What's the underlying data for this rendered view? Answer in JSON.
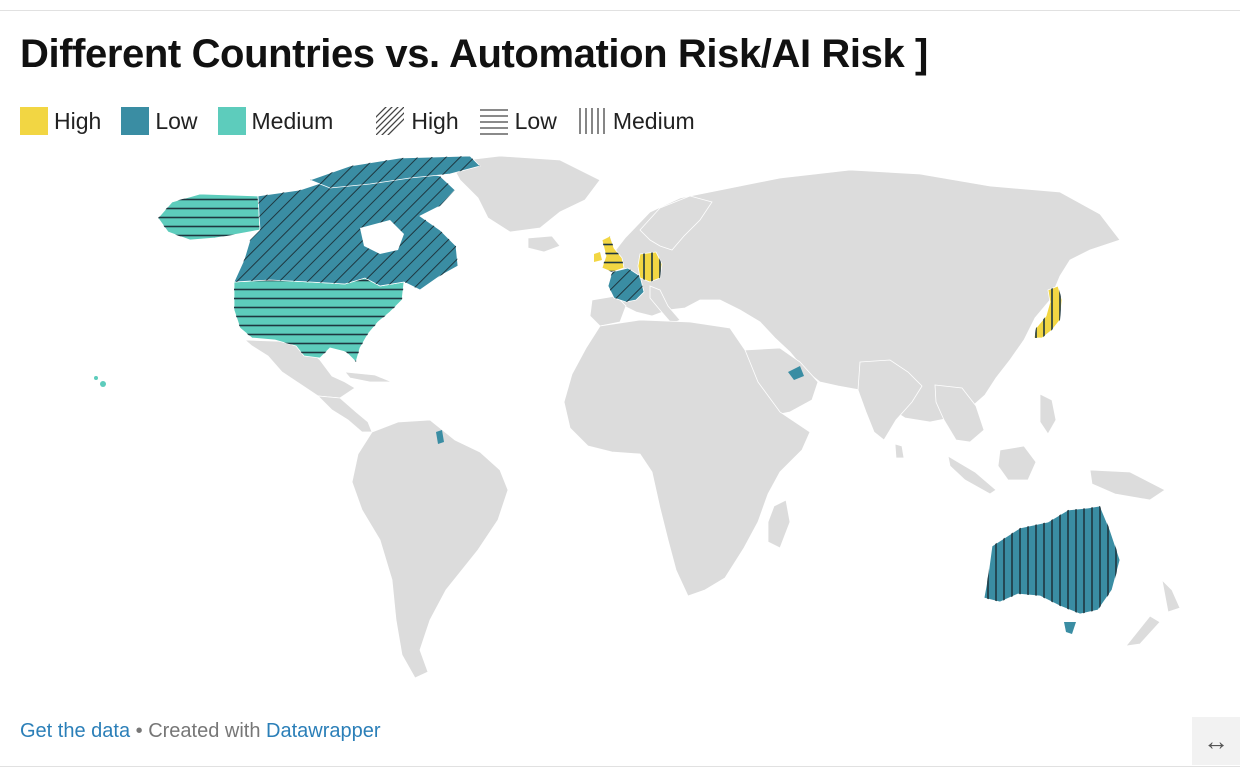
{
  "title": "Different Countries vs. Automation Risk/AI Risk ]",
  "colors": {
    "high": "#f2d643",
    "low": "#3a8da3",
    "medium": "#5dccbc",
    "land": "#dcdcdc",
    "border": "#ffffff",
    "hatch": "#1e3740",
    "link": "#2b7fb8"
  },
  "legend": {
    "color_keys": [
      {
        "label": "High",
        "color": "#f2d643"
      },
      {
        "label": "Low",
        "color": "#3a8da3"
      },
      {
        "label": "Medium",
        "color": "#5dccbc"
      }
    ],
    "pattern_keys": [
      {
        "label": "High",
        "pattern": "diagonal-hatch"
      },
      {
        "label": "Low",
        "pattern": "horizontal-lines"
      },
      {
        "label": "Medium",
        "pattern": "vertical-lines"
      }
    ]
  },
  "map_data": {
    "projection": "world",
    "fill_variable_legend": "High / Low / Medium",
    "pattern_variable_legend": "High / Low / Medium",
    "countries": [
      {
        "country": "United States",
        "fill": "Medium",
        "pattern": "Low"
      },
      {
        "country": "Canada",
        "fill": "Low",
        "pattern": "High"
      },
      {
        "country": "Greenland",
        "fill": "none",
        "pattern": "none"
      },
      {
        "country": "United Kingdom",
        "fill": "High",
        "pattern": "Low"
      },
      {
        "country": "France",
        "fill": "Low",
        "pattern": "High"
      },
      {
        "country": "Germany",
        "fill": "High",
        "pattern": "Medium"
      },
      {
        "country": "United Arab Emirates",
        "fill": "Low",
        "pattern": "none"
      },
      {
        "country": "Japan",
        "fill": "High",
        "pattern": "Medium"
      },
      {
        "country": "Australia",
        "fill": "Low",
        "pattern": "Medium"
      }
    ]
  },
  "footer": {
    "get_data": "Get the data",
    "separator": " • Created with ",
    "tool": "Datawrapper"
  },
  "resize_icon": "↔"
}
